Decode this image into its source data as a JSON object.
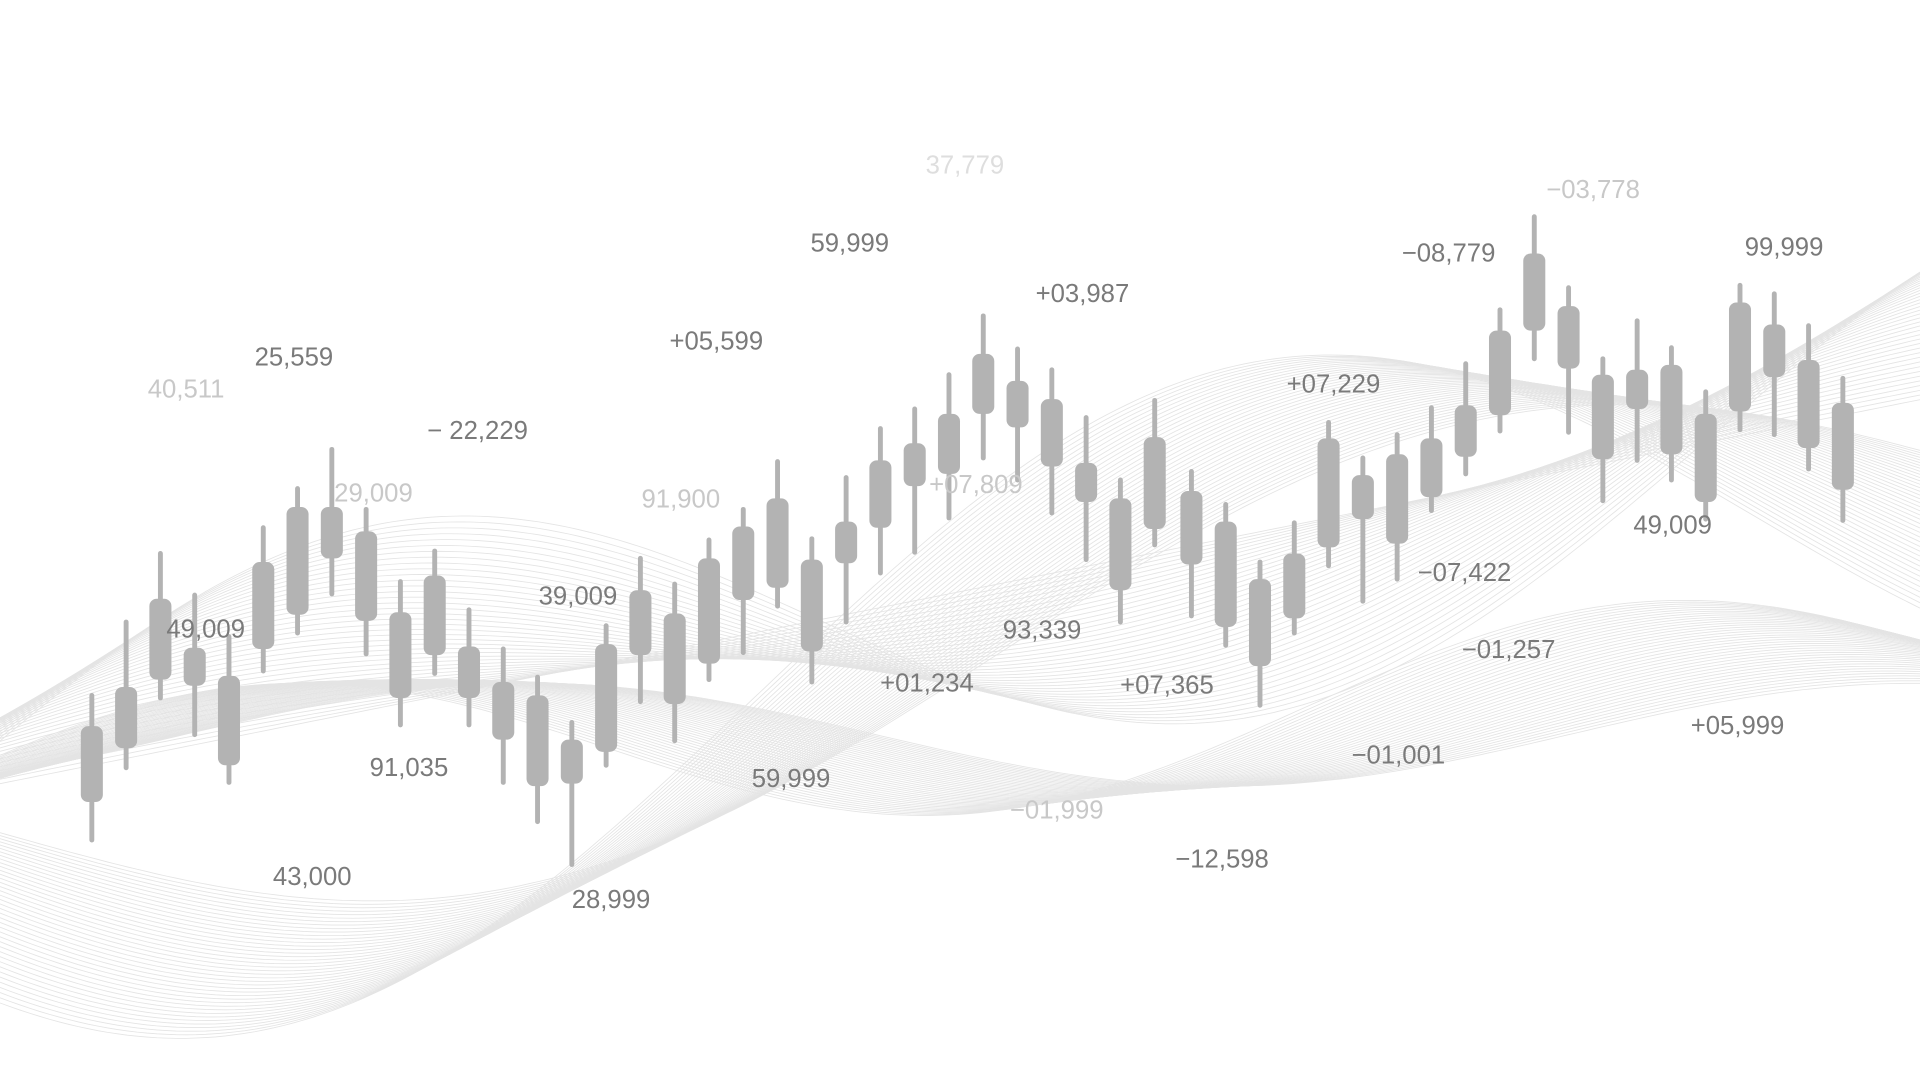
{
  "colors": {
    "background": "#ffffff",
    "candle": "#b3b3b3",
    "label_dark": "#7a7a7a",
    "label_light": "#c8c8c8",
    "wave": "#e4e4e4"
  },
  "labels": [
    "37,779",
    "−03,778",
    "59,999",
    "−08,779",
    "99,999",
    "+03,987",
    "25,559",
    "40,511",
    "+05,599",
    "+07,229",
    "− 22,229",
    "29,009",
    "91,900",
    "+07,809",
    "49,009",
    "−07,422",
    "39,009",
    "49,009",
    "93,339",
    "−01,257",
    "+01,234",
    "+07,365",
    "+05,999",
    "−01,001",
    "91,035",
    "59,999",
    "−01,999",
    "−12,598",
    "43,000",
    "28,999"
  ]
}
